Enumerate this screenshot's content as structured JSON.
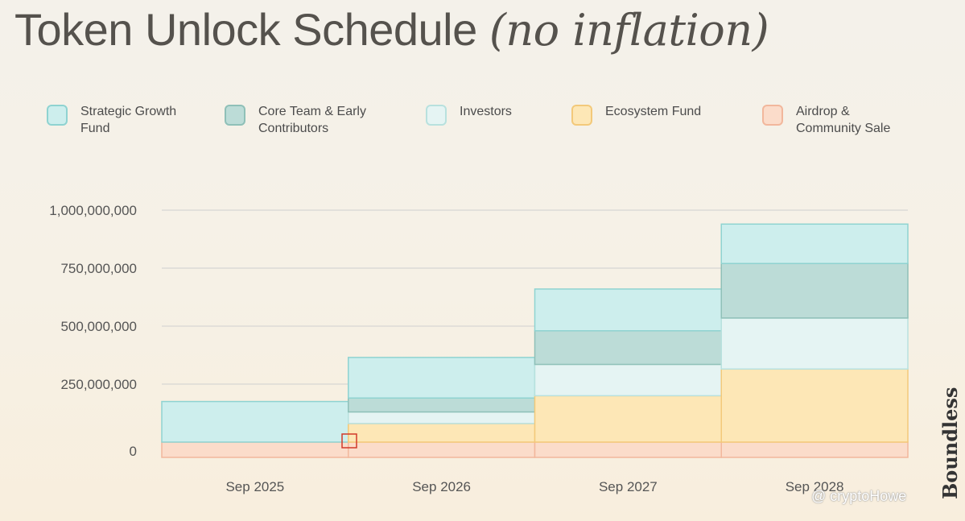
{
  "title": {
    "main": "Token Unlock Schedule",
    "sub": "(no inflation)"
  },
  "brand": "Boundless",
  "watermark": "@ cryptoHowe",
  "colors": {
    "strategic": "#cdeeed",
    "core": "#bcdcd7",
    "investors": "#e5f4f3",
    "ecosystem": "#fde7b6",
    "airdrop": "#fbdcca",
    "gridline": "#cfcfcf",
    "highlight": "#d23a2a"
  },
  "legend": [
    {
      "key": "strategic",
      "label": "Strategic Growth Fund",
      "fill": "#cdeeed",
      "stroke": "#8fd3d1"
    },
    {
      "key": "core",
      "label": "Core Team & Early Contributors",
      "fill": "#bcdcd7",
      "stroke": "#8fc0b8"
    },
    {
      "key": "investors",
      "label": "Investors",
      "fill": "#e5f4f3",
      "stroke": "#b8e1de"
    },
    {
      "key": "ecosystem",
      "label": "Ecosystem Fund",
      "fill": "#fde7b6",
      "stroke": "#f3c97a"
    },
    {
      "key": "airdrop",
      "label": "Airdrop & Community Sale",
      "fill": "#fbdcca",
      "stroke": "#f2b79c"
    }
  ],
  "chart_data": {
    "type": "area",
    "stacked": true,
    "step": true,
    "x": [
      "Sep 2025",
      "Sep 2026",
      "Sep 2027",
      "Sep 2028"
    ],
    "y_ticks": [
      0,
      250000000,
      500000000,
      750000000,
      1000000000
    ],
    "y_tick_labels": [
      "0",
      "250,000,000",
      "500,000,000",
      "750,000,000",
      "1,000,000,000"
    ],
    "ylim": [
      0,
      1000000000
    ],
    "grid": true,
    "series": [
      {
        "name": "Airdrop & Community Sale",
        "values": [
          60000000,
          60000000,
          60000000,
          60000000
        ]
      },
      {
        "name": "Ecosystem Fund",
        "values": [
          0,
          80000000,
          200000000,
          315000000
        ]
      },
      {
        "name": "Investors",
        "values": [
          0,
          50000000,
          135000000,
          220000000
        ]
      },
      {
        "name": "Core Team & Early Contributors",
        "values": [
          0,
          60000000,
          145000000,
          235000000
        ]
      },
      {
        "name": "Strategic Growth Fund",
        "values": [
          175000000,
          175000000,
          180000000,
          170000000
        ]
      }
    ]
  }
}
